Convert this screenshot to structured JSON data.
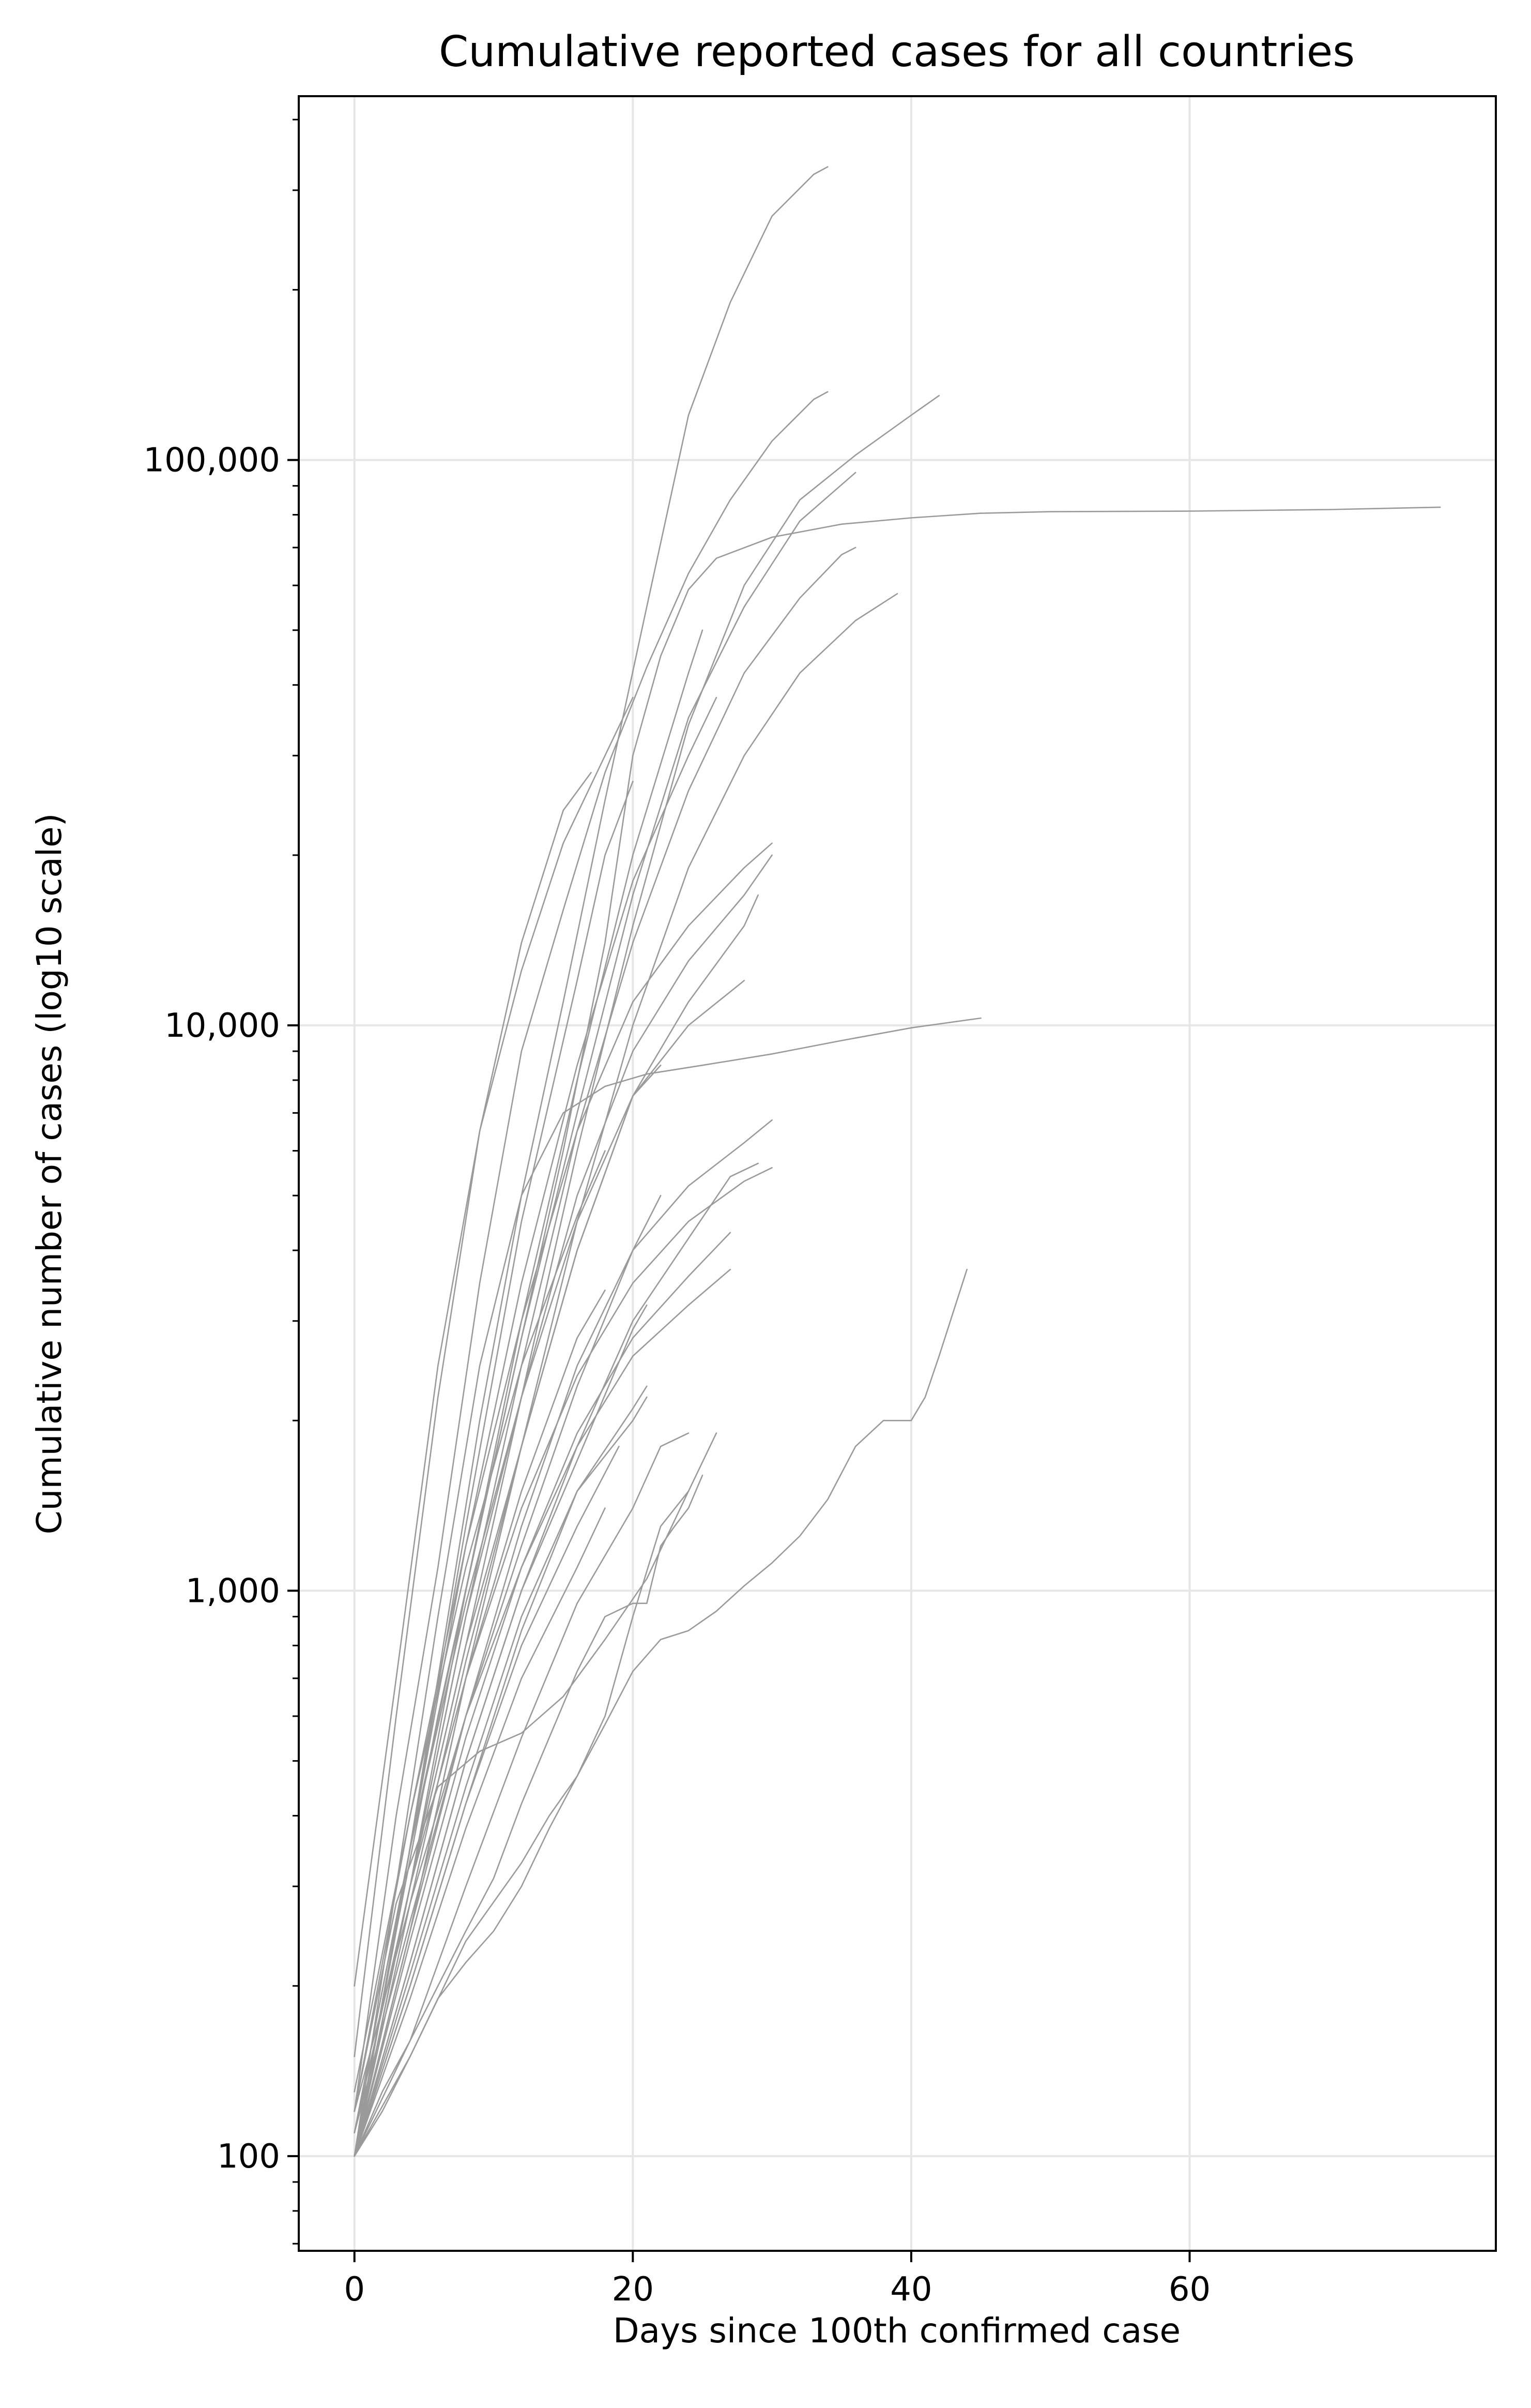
{
  "chart_data": {
    "type": "line",
    "title": "Cumulative reported cases for all countries",
    "xlabel": "Days since 100th confirmed case",
    "ylabel": "Cumulative number of cases (log10 scale)",
    "xlim": [
      -4,
      82
    ],
    "ylim": [
      68,
      440000
    ],
    "y_scale": "log",
    "grid": true,
    "legend": "none",
    "line_color": "#9a9a9a",
    "x_ticks": [
      0,
      20,
      40,
      60
    ],
    "x_tick_labels": [
      "0",
      "20",
      "40",
      "60"
    ],
    "y_ticks": [
      100,
      1000,
      10000,
      100000
    ],
    "y_tick_labels": [
      "100",
      "1,000",
      "10,000",
      "100,000"
    ],
    "series": [
      {
        "x": [
          0,
          3,
          6,
          9,
          12,
          15,
          18,
          21,
          24,
          27,
          30,
          33,
          34
        ],
        "y": [
          100,
          250,
          700,
          2000,
          5000,
          11000,
          25000,
          55000,
          120000,
          190000,
          270000,
          320000,
          330000
        ]
      },
      {
        "x": [
          0,
          3,
          6,
          9,
          12,
          15,
          18,
          21,
          24,
          27,
          30,
          33,
          34
        ],
        "y": [
          120,
          400,
          1100,
          3500,
          9000,
          16000,
          28000,
          43000,
          63000,
          85000,
          108000,
          128000,
          132000
        ]
      },
      {
        "x": [
          0,
          4,
          8,
          12,
          16,
          20,
          24,
          28,
          32,
          36,
          40,
          42
        ],
        "y": [
          100,
          300,
          800,
          2200,
          6000,
          15000,
          34000,
          60000,
          85000,
          102000,
          120000,
          130000
        ]
      },
      {
        "x": [
          0,
          3,
          6,
          9,
          12,
          15,
          18,
          20,
          22,
          24,
          26,
          30,
          35,
          40,
          45,
          50,
          60,
          70,
          78
        ],
        "y": [
          100,
          250,
          600,
          1300,
          2800,
          6000,
          14000,
          30000,
          45000,
          59000,
          67000,
          73000,
          77000,
          79000,
          80500,
          81000,
          81200,
          81700,
          82500
        ]
      },
      {
        "x": [
          0,
          4,
          8,
          12,
          16,
          20,
          24,
          28,
          32,
          36
        ],
        "y": [
          110,
          350,
          1000,
          2800,
          7000,
          17000,
          35000,
          55000,
          78000,
          95000
        ]
      },
      {
        "x": [
          0,
          4,
          8,
          12,
          16,
          20,
          24,
          28,
          32,
          35,
          36
        ],
        "y": [
          100,
          300,
          900,
          2500,
          6500,
          14000,
          26000,
          42000,
          57000,
          68000,
          70000
        ]
      },
      {
        "x": [
          0,
          4,
          8,
          12,
          16,
          20,
          24,
          28,
          32,
          36,
          39
        ],
        "y": [
          100,
          250,
          700,
          1800,
          4500,
          10000,
          19000,
          30000,
          42000,
          52000,
          58000
        ]
      },
      {
        "x": [
          0,
          4,
          8,
          12,
          16,
          20,
          24,
          28,
          30
        ],
        "y": [
          120,
          400,
          1200,
          3000,
          6500,
          11000,
          15000,
          19000,
          21000
        ]
      },
      {
        "x": [
          0,
          4,
          8,
          12,
          16,
          20,
          24,
          28,
          30
        ],
        "y": [
          100,
          300,
          900,
          2200,
          5000,
          9000,
          13000,
          17000,
          20000
        ]
      },
      {
        "x": [
          0,
          4,
          8,
          12,
          16,
          20,
          24,
          28,
          29
        ],
        "y": [
          100,
          280,
          750,
          1800,
          4000,
          7500,
          11000,
          15000,
          17000
        ]
      },
      {
        "x": [
          0,
          4,
          8,
          12,
          16,
          20,
          24,
          28
        ],
        "y": [
          100,
          300,
          800,
          1800,
          4000,
          7500,
          10000,
          12000
        ]
      },
      {
        "x": [
          0,
          3,
          6,
          9,
          12,
          15,
          18,
          21,
          25,
          30,
          35,
          40,
          45
        ],
        "y": [
          100,
          300,
          900,
          2500,
          5000,
          7000,
          7800,
          8200,
          8500,
          8900,
          9400,
          9900,
          10300
        ]
      },
      {
        "x": [
          0,
          4,
          8,
          12,
          16,
          20,
          22
        ],
        "y": [
          110,
          350,
          950,
          2200,
          4500,
          7500,
          8500
        ]
      },
      {
        "x": [
          0,
          4,
          8,
          12,
          16,
          20,
          24,
          28,
          30
        ],
        "y": [
          100,
          250,
          600,
          1300,
          2500,
          4000,
          5200,
          6200,
          6800
        ]
      },
      {
        "x": [
          0,
          4,
          8,
          12,
          16,
          20,
          24,
          28,
          30
        ],
        "y": [
          110,
          300,
          700,
          1400,
          2400,
          3500,
          4500,
          5300,
          5600
        ]
      },
      {
        "x": [
          0,
          4,
          8,
          12,
          16,
          20,
          24,
          27,
          29
        ],
        "y": [
          100,
          220,
          500,
          1000,
          1800,
          3000,
          4200,
          5400,
          5700
        ]
      },
      {
        "x": [
          0,
          4,
          8,
          12,
          16,
          20,
          24,
          27
        ],
        "y": [
          100,
          240,
          550,
          1100,
          1900,
          2800,
          3600,
          4300
        ]
      },
      {
        "x": [
          0,
          4,
          8,
          12,
          16,
          20,
          24,
          27
        ],
        "y": [
          120,
          280,
          600,
          1100,
          1800,
          2600,
          3200,
          3700
        ]
      },
      {
        "x": [
          0,
          4,
          8,
          12,
          16,
          20,
          22
        ],
        "y": [
          110,
          260,
          600,
          1200,
          2300,
          4000,
          5000
        ]
      },
      {
        "x": [
          0,
          4,
          8,
          12,
          16,
          20,
          21
        ],
        "y": [
          100,
          220,
          500,
          1000,
          1700,
          2900,
          3200
        ]
      },
      {
        "x": [
          0,
          4,
          8,
          12,
          16,
          20,
          21
        ],
        "y": [
          100,
          200,
          420,
          850,
          1500,
          2100,
          2300
        ]
      },
      {
        "x": [
          0,
          4,
          8,
          12,
          16,
          20,
          21
        ],
        "y": [
          100,
          210,
          450,
          900,
          1500,
          2000,
          2200
        ]
      },
      {
        "x": [
          0,
          4,
          8,
          12,
          16,
          19
        ],
        "y": [
          100,
          200,
          420,
          800,
          1300,
          1800
        ]
      },
      {
        "x": [
          0,
          4,
          8,
          12,
          16,
          18
        ],
        "y": [
          100,
          190,
          380,
          700,
          1100,
          1400
        ]
      },
      {
        "x": [
          0,
          4,
          8,
          12,
          16,
          20,
          22,
          24
        ],
        "y": [
          100,
          160,
          300,
          550,
          950,
          1400,
          1800,
          1900
        ]
      },
      {
        "x": [
          0,
          4,
          8,
          12,
          14,
          16,
          18,
          20,
          22,
          24
        ],
        "y": [
          100,
          150,
          240,
          330,
          400,
          470,
          600,
          900,
          1300,
          1500
        ]
      },
      {
        "x": [
          0,
          2,
          4,
          6,
          8,
          10,
          12,
          14,
          16,
          18,
          20,
          21,
          22,
          23,
          24,
          25
        ],
        "y": [
          100,
          130,
          160,
          200,
          250,
          310,
          420,
          550,
          720,
          900,
          950,
          950,
          1200,
          1300,
          1400,
          1600
        ]
      },
      {
        "x": [
          0,
          2,
          4,
          6,
          8,
          10,
          12,
          14,
          16,
          18,
          20,
          22,
          24,
          26,
          28,
          30,
          32,
          34,
          36,
          38,
          40,
          41,
          42,
          44
        ],
        "y": [
          100,
          120,
          150,
          190,
          220,
          250,
          300,
          380,
          470,
          580,
          720,
          820,
          850,
          920,
          1020,
          1120,
          1250,
          1450,
          1800,
          2000,
          2000,
          2200,
          2600,
          3700
        ]
      },
      {
        "x": [
          0,
          3,
          6,
          9,
          12,
          15,
          18,
          21,
          24,
          26
        ],
        "y": [
          120,
          280,
          450,
          520,
          560,
          650,
          820,
          1050,
          1500,
          1900
        ]
      },
      {
        "x": [
          0,
          4,
          8,
          12,
          16,
          18
        ],
        "y": [
          100,
          250,
          700,
          1500,
          2800,
          3400
        ]
      },
      {
        "x": [
          0,
          4,
          8,
          12,
          16,
          18
        ],
        "y": [
          130,
          400,
          1100,
          2500,
          4600,
          6000
        ]
      },
      {
        "x": [
          0,
          4,
          8,
          12,
          16,
          18,
          20
        ],
        "y": [
          100,
          350,
          1300,
          4500,
          12000,
          20000,
          27000
        ]
      },
      {
        "x": [
          0,
          3,
          6,
          9,
          12,
          15,
          17
        ],
        "y": [
          150,
          600,
          2200,
          6500,
          14000,
          24000,
          28000
        ]
      },
      {
        "x": [
          0,
          3,
          6,
          9,
          12,
          15,
          18,
          20
        ],
        "y": [
          200,
          700,
          2500,
          6500,
          12500,
          21000,
          30000,
          38000
        ]
      },
      {
        "x": [
          0,
          4,
          8,
          12,
          16,
          20,
          24,
          26
        ],
        "y": [
          100,
          350,
          1200,
          3500,
          8500,
          18000,
          30000,
          38000
        ]
      },
      {
        "x": [
          0,
          4,
          8,
          12,
          16,
          20,
          24,
          25
        ],
        "y": [
          100,
          300,
          1000,
          3000,
          8000,
          20000,
          42000,
          50000
        ]
      }
    ]
  }
}
